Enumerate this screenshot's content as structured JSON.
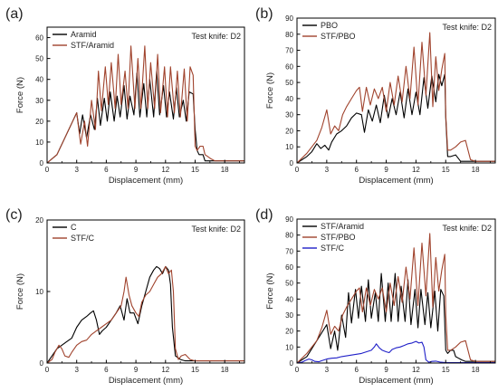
{
  "chart_data": [
    {
      "type": "line",
      "panel_label": "(a)",
      "xlabel": "Displacement (mm)",
      "ylabel": "Force (N)",
      "xlim": [
        0,
        20
      ],
      "ylim": [
        0,
        65
      ],
      "xticks": [
        0,
        3,
        6,
        9,
        12,
        15,
        18
      ],
      "yticks": [
        0,
        10,
        20,
        30,
        40,
        50,
        60
      ],
      "annotation": "Test knife: D2",
      "legend_position": "top-left",
      "series": [
        {
          "name": "Aramid",
          "color": "#000000",
          "x": [
            0,
            1,
            2,
            2.8,
            3.0,
            3.3,
            3.6,
            4.0,
            4.4,
            4.8,
            5.1,
            5.4,
            5.8,
            6.1,
            6.4,
            6.8,
            7.1,
            7.4,
            7.8,
            8.1,
            8.4,
            8.8,
            9.1,
            9.4,
            9.8,
            10.1,
            10.4,
            10.8,
            11.1,
            11.4,
            11.8,
            12.1,
            12.4,
            12.8,
            13.1,
            13.4,
            13.8,
            14.1,
            14.4,
            14.8,
            15.0,
            15.2,
            15.4,
            15.8,
            16.0,
            16.5,
            17,
            18,
            19,
            20
          ],
          "y": [
            0,
            4,
            14,
            22,
            24,
            14,
            23,
            12,
            23,
            16,
            31,
            18,
            31,
            20,
            34,
            20,
            32,
            22,
            37,
            21,
            32,
            23,
            43,
            22,
            38,
            22,
            40,
            22,
            44,
            23,
            37,
            22,
            34,
            21,
            36,
            22,
            30,
            20,
            34,
            33,
            16,
            6,
            4,
            4,
            1,
            1,
            1,
            1,
            1,
            1
          ]
        },
        {
          "name": "STF/Aramid",
          "color": "#a0432d",
          "x": [
            0,
            1,
            2,
            2.8,
            3.0,
            3.4,
            3.8,
            4.1,
            4.5,
            4.9,
            5.2,
            5.5,
            5.9,
            6.2,
            6.5,
            6.9,
            7.2,
            7.5,
            7.9,
            8.2,
            8.5,
            8.9,
            9.2,
            9.5,
            9.9,
            10.2,
            10.5,
            10.9,
            11.2,
            11.5,
            11.9,
            12.2,
            12.5,
            12.9,
            13.2,
            13.5,
            13.9,
            14.2,
            14.5,
            14.8,
            15.0,
            15.2,
            15.5,
            15.8,
            16.0,
            16.3,
            16.6,
            17,
            18,
            19,
            20
          ],
          "y": [
            0,
            4,
            14,
            22,
            24,
            9,
            20,
            8,
            30,
            16,
            44,
            25,
            46,
            28,
            48,
            26,
            52,
            28,
            44,
            26,
            56,
            26,
            50,
            26,
            56,
            26,
            48,
            26,
            52,
            24,
            46,
            22,
            46,
            24,
            44,
            22,
            45,
            20,
            46,
            42,
            8,
            6,
            8,
            8,
            4,
            3,
            2,
            1,
            1,
            1,
            1
          ]
        }
      ]
    },
    {
      "type": "line",
      "panel_label": "(b)",
      "xlabel": "Displacement (mm)",
      "ylabel": "Force (N)",
      "xlim": [
        0,
        20
      ],
      "ylim": [
        0,
        90
      ],
      "xticks": [
        0,
        3,
        6,
        9,
        12,
        15,
        18
      ],
      "yticks": [
        0,
        10,
        20,
        30,
        40,
        50,
        60,
        70,
        80,
        90
      ],
      "annotation": "Test knife: D2",
      "legend_position": "top-left",
      "series": [
        {
          "name": "PBO",
          "color": "#000000",
          "x": [
            0,
            1,
            1.5,
            2.0,
            2.4,
            2.8,
            3.2,
            3.5,
            4.0,
            4.5,
            5.0,
            5.5,
            6.0,
            6.5,
            6.8,
            7.2,
            7.6,
            8.0,
            8.4,
            8.8,
            9.2,
            9.6,
            10.0,
            10.4,
            10.8,
            11.2,
            11.6,
            12.0,
            12.4,
            12.8,
            13.2,
            13.6,
            14.0,
            14.3,
            14.6,
            14.9,
            15.0,
            15.2,
            15.5,
            16.0,
            16.5,
            17,
            18,
            19,
            20
          ],
          "y": [
            0,
            4,
            7,
            12,
            9,
            11,
            8,
            13,
            18,
            20,
            23,
            28,
            31,
            30,
            19,
            33,
            26,
            36,
            25,
            42,
            28,
            40,
            30,
            44,
            28,
            46,
            30,
            44,
            30,
            53,
            34,
            54,
            38,
            55,
            48,
            55,
            28,
            4,
            4,
            5,
            1,
            1,
            1,
            1,
            1
          ]
        },
        {
          "name": "STF/PBO",
          "color": "#a0432d",
          "x": [
            0,
            1,
            2,
            2.5,
            3.0,
            3.4,
            3.8,
            4.2,
            4.6,
            5.0,
            5.5,
            6.0,
            6.3,
            6.6,
            7.0,
            7.4,
            7.8,
            8.2,
            8.6,
            9.0,
            9.4,
            9.8,
            10.2,
            10.6,
            11.0,
            11.4,
            11.8,
            12.2,
            12.6,
            13.0,
            13.4,
            13.7,
            14.0,
            14.3,
            14.6,
            14.9,
            15.0,
            15.2,
            15.5,
            16.0,
            16.5,
            17.0,
            17.5,
            18,
            19,
            20
          ],
          "y": [
            0,
            6,
            14,
            22,
            33,
            18,
            23,
            20,
            30,
            35,
            40,
            45,
            47,
            32,
            47,
            36,
            46,
            40,
            47,
            32,
            50,
            36,
            54,
            38,
            60,
            40,
            72,
            36,
            75,
            42,
            81,
            35,
            66,
            45,
            58,
            68,
            30,
            8,
            8,
            10,
            13,
            14,
            2,
            1,
            1,
            1
          ]
        }
      ]
    },
    {
      "type": "line",
      "panel_label": "(c)",
      "xlabel": "Displacement (mm)",
      "ylabel": "Force (N)",
      "xlim": [
        0,
        20
      ],
      "ylim": [
        0,
        20
      ],
      "xticks": [
        0,
        3,
        6,
        9,
        12,
        15,
        18
      ],
      "yticks": [
        0,
        10,
        20
      ],
      "annotation": "Test knife: D2",
      "legend_position": "top-left",
      "series": [
        {
          "name": "C",
          "color": "#000000",
          "x": [
            0,
            0.5,
            1.0,
            1.5,
            2.0,
            2.5,
            3.0,
            3.5,
            4.0,
            4.4,
            4.7,
            5.0,
            5.3,
            5.6,
            6.0,
            6.5,
            7.0,
            7.4,
            7.8,
            8.1,
            8.4,
            8.8,
            9.2,
            9.6,
            10.0,
            10.4,
            10.8,
            11.1,
            11.4,
            11.7,
            12.0,
            12.3,
            12.5,
            12.7,
            13.0,
            13.5,
            14,
            15,
            16,
            17,
            18,
            19,
            20
          ],
          "y": [
            0,
            1,
            2,
            2.5,
            3,
            3.5,
            5,
            6,
            6.5,
            7,
            7.3,
            6,
            4,
            4.5,
            5,
            6,
            7,
            8,
            6,
            9,
            7,
            7,
            5.5,
            8,
            10,
            12,
            13,
            13.5,
            13.2,
            12.5,
            13.5,
            13,
            11,
            5,
            1,
            0.5,
            0.3,
            0.3,
            0.3,
            0.3,
            0.3,
            0.3,
            0.3
          ]
        },
        {
          "name": "STF/C",
          "color": "#a0432d",
          "x": [
            0,
            0.5,
            0.8,
            1.2,
            1.5,
            1.8,
            2.2,
            2.5,
            3.0,
            3.5,
            4.0,
            4.5,
            5.0,
            5.5,
            6.0,
            6.5,
            7.0,
            7.5,
            7.8,
            8.0,
            8.3,
            8.6,
            9.0,
            9.3,
            9.6,
            10.0,
            10.4,
            10.8,
            11.2,
            11.6,
            12.0,
            12.3,
            12.6,
            12.8,
            13.0,
            13.3,
            13.6,
            14.0,
            14.5,
            15,
            16,
            17,
            18,
            19,
            20
          ],
          "y": [
            0,
            0.5,
            1.5,
            2.5,
            2,
            1,
            0.8,
            1.5,
            2.5,
            3,
            3.2,
            4,
            4.5,
            5,
            5.5,
            6,
            7,
            8,
            10,
            12,
            9.5,
            8,
            7,
            6.5,
            8.5,
            9.5,
            10,
            11,
            12,
            12.5,
            13.5,
            12.5,
            13,
            10,
            2,
            0.5,
            1,
            1.2,
            0.5,
            0.3,
            0.3,
            0.3,
            0.3,
            0.3,
            0.3
          ]
        }
      ]
    },
    {
      "type": "line",
      "panel_label": "(d)",
      "xlabel": "Displacement (mm)",
      "ylabel": "Force (N)",
      "xlim": [
        0,
        20
      ],
      "ylim": [
        0,
        90
      ],
      "xticks": [
        0,
        3,
        6,
        9,
        12,
        15,
        18
      ],
      "yticks": [
        0,
        10,
        20,
        30,
        40,
        50,
        60,
        70,
        80,
        90
      ],
      "annotation": "Test knife: D2",
      "legend_position": "top-left",
      "series": [
        {
          "name": "STF/Aramid",
          "color": "#000000",
          "x": [
            0,
            1,
            2,
            2.8,
            3.0,
            3.4,
            3.8,
            4.1,
            4.5,
            4.9,
            5.2,
            5.5,
            5.9,
            6.2,
            6.5,
            6.9,
            7.2,
            7.5,
            7.9,
            8.2,
            8.5,
            8.9,
            9.2,
            9.5,
            9.9,
            10.2,
            10.5,
            10.9,
            11.2,
            11.5,
            11.9,
            12.2,
            12.5,
            12.9,
            13.2,
            13.5,
            13.9,
            14.2,
            14.5,
            14.8,
            15.0,
            15.2,
            15.5,
            15.8,
            16.0,
            16.3,
            16.6,
            17,
            18,
            19,
            20
          ],
          "y": [
            0,
            4,
            14,
            22,
            24,
            9,
            20,
            8,
            30,
            16,
            44,
            25,
            46,
            28,
            48,
            26,
            52,
            28,
            44,
            26,
            56,
            26,
            50,
            26,
            56,
            26,
            48,
            26,
            52,
            24,
            46,
            22,
            46,
            24,
            44,
            22,
            45,
            20,
            46,
            42,
            8,
            6,
            8,
            8,
            4,
            3,
            2,
            1,
            1,
            1,
            1
          ]
        },
        {
          "name": "STF/PBO",
          "color": "#a0432d",
          "x": [
            0,
            1,
            2,
            2.5,
            3.0,
            3.4,
            3.8,
            4.2,
            4.6,
            5.0,
            5.5,
            6.0,
            6.3,
            6.6,
            7.0,
            7.4,
            7.8,
            8.2,
            8.6,
            9.0,
            9.4,
            9.8,
            10.2,
            10.6,
            11.0,
            11.4,
            11.8,
            12.2,
            12.6,
            13.0,
            13.4,
            13.7,
            14.0,
            14.3,
            14.6,
            14.9,
            15.0,
            15.2,
            15.5,
            16.0,
            16.5,
            17.0,
            17.5,
            18,
            19,
            20
          ],
          "y": [
            0,
            6,
            14,
            22,
            33,
            18,
            23,
            20,
            30,
            35,
            40,
            45,
            47,
            32,
            47,
            36,
            46,
            40,
            47,
            32,
            50,
            36,
            54,
            38,
            60,
            40,
            72,
            36,
            75,
            42,
            81,
            35,
            66,
            45,
            58,
            68,
            30,
            8,
            8,
            10,
            13,
            14,
            2,
            1,
            1,
            1
          ]
        },
        {
          "name": "STF/C",
          "color": "#1f1fc8",
          "x": [
            0,
            0.5,
            0.8,
            1.2,
            1.5,
            1.8,
            2.2,
            2.5,
            3.0,
            3.5,
            4.0,
            4.5,
            5.0,
            5.5,
            6.0,
            6.5,
            7.0,
            7.5,
            7.8,
            8.0,
            8.3,
            8.6,
            9.0,
            9.3,
            9.6,
            10.0,
            10.4,
            10.8,
            11.2,
            11.6,
            12.0,
            12.3,
            12.6,
            12.8,
            13.0,
            13.3,
            13.6,
            14.0,
            14.5,
            15,
            16,
            17,
            18,
            19,
            20
          ],
          "y": [
            0,
            0.5,
            1.5,
            2.5,
            2,
            1,
            0.8,
            1.5,
            2.5,
            3,
            3.2,
            4,
            4.5,
            5,
            5.5,
            6,
            7,
            8,
            10,
            12,
            9.5,
            8,
            7,
            6.5,
            8.5,
            9.5,
            10,
            11,
            12,
            12.5,
            13.5,
            12.5,
            13,
            10,
            2,
            0.5,
            1,
            1.2,
            0.5,
            0.3,
            0.3,
            0.3,
            0.3,
            0.3,
            0.3
          ]
        }
      ]
    }
  ]
}
